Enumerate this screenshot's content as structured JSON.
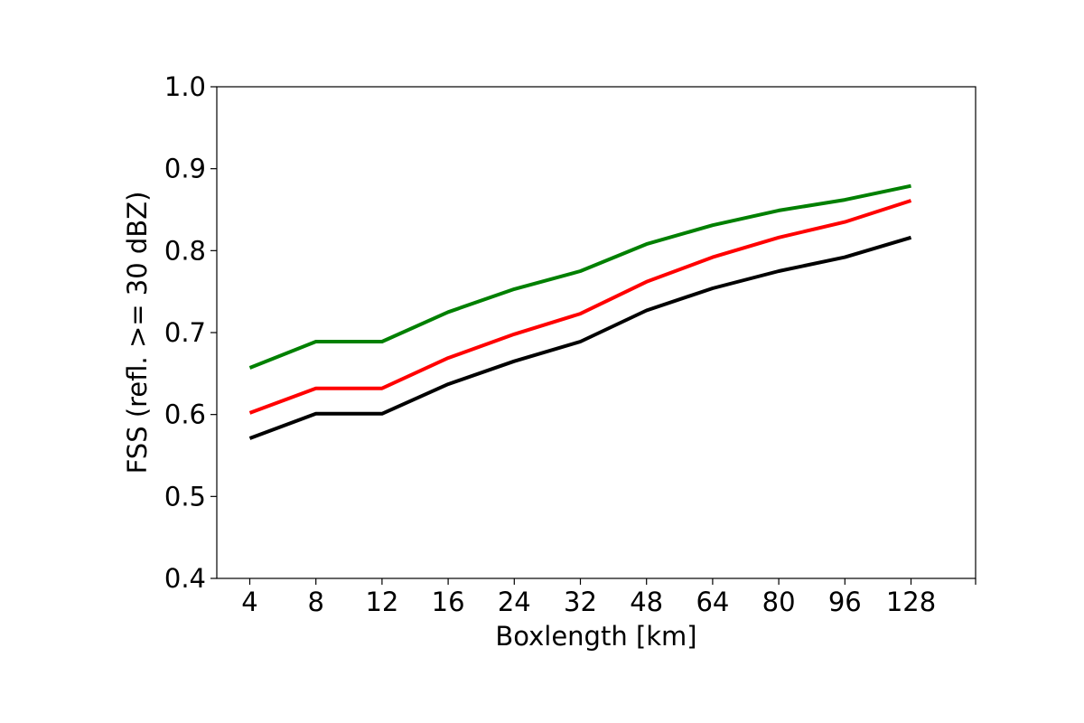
{
  "chart_data": {
    "type": "line",
    "title": "",
    "xlabel": "Boxlength [km]",
    "ylabel": "FSS (refl. >= 30 dBZ)",
    "categories": [
      "4",
      "8",
      "12",
      "16",
      "24",
      "32",
      "48",
      "64",
      "80",
      "96",
      "128"
    ],
    "ylim": [
      0.4,
      1.0
    ],
    "yticks": [
      "0.4",
      "0.5",
      "0.6",
      "0.7",
      "0.8",
      "0.9",
      "1.0"
    ],
    "grid": false,
    "legend": "none",
    "series": [
      {
        "color": "#008000",
        "values": [
          0.657,
          0.689,
          0.689,
          0.725,
          0.753,
          0.775,
          0.808,
          0.831,
          0.849,
          0.862,
          0.879
        ]
      },
      {
        "color": "#ff0000",
        "values": [
          0.602,
          0.632,
          0.632,
          0.669,
          0.698,
          0.723,
          0.762,
          0.792,
          0.816,
          0.835,
          0.861
        ]
      },
      {
        "color": "#000000",
        "values": [
          0.571,
          0.601,
          0.601,
          0.637,
          0.665,
          0.689,
          0.727,
          0.754,
          0.775,
          0.792,
          0.816
        ]
      }
    ]
  }
}
